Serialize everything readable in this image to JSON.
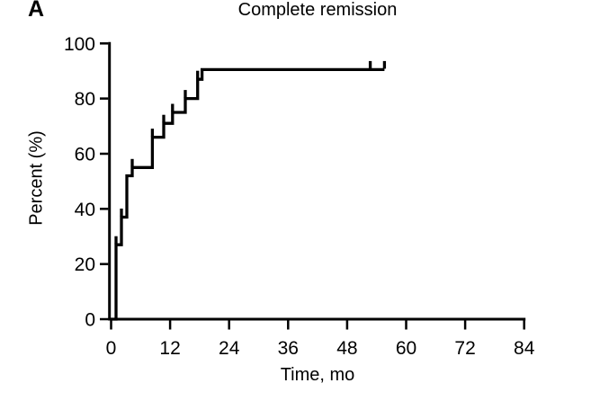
{
  "chart_data": {
    "type": "line",
    "subtype": "kaplan-meier-step",
    "panel_label": "A",
    "title": "Complete remission",
    "xlabel": "Time, mo",
    "ylabel": "Percent (%)",
    "xlim": [
      0,
      84
    ],
    "ylim": [
      0,
      100
    ],
    "xticks": [
      0,
      12,
      24,
      36,
      48,
      60,
      72,
      84
    ],
    "yticks": [
      0,
      20,
      40,
      60,
      80,
      100
    ],
    "grid": false,
    "legend": "none",
    "colors": {
      "curve": "#000000",
      "axis": "#000000",
      "text": "#000000",
      "background": "#ffffff"
    },
    "series": [
      {
        "name": "Complete remission",
        "start": [
          0,
          0
        ],
        "steps": [
          [
            1.0,
            27
          ],
          [
            2.1,
            37
          ],
          [
            3.2,
            52
          ],
          [
            4.3,
            55
          ],
          [
            8.4,
            66
          ],
          [
            10.7,
            71
          ],
          [
            12.5,
            75
          ],
          [
            15.1,
            80
          ],
          [
            17.6,
            87
          ],
          [
            18.5,
            90.5
          ]
        ],
        "end_time": 55.6,
        "censor_times": [
          1.0,
          2.1,
          4.3,
          8.4,
          10.7,
          12.5,
          15.1,
          17.6,
          52.7,
          55.6
        ]
      }
    ]
  }
}
